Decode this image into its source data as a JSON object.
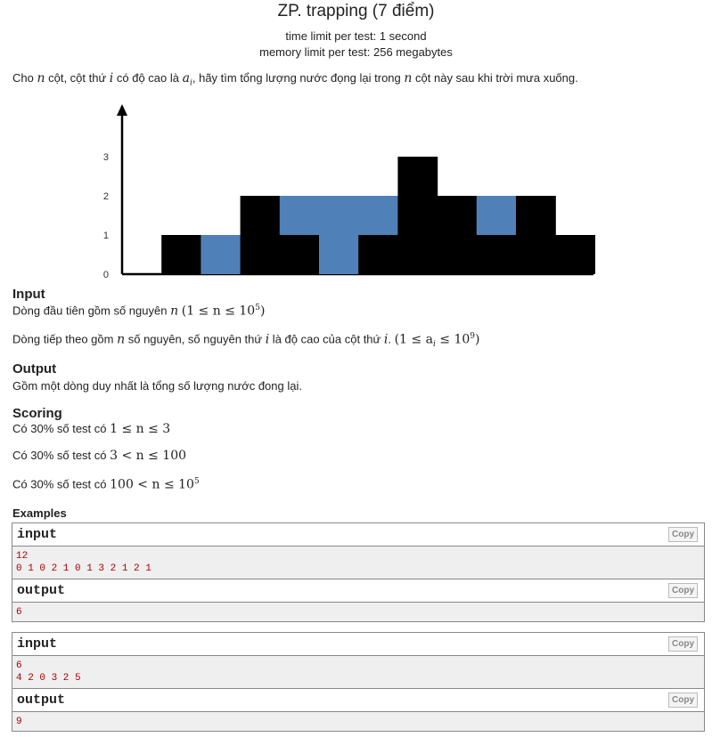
{
  "problem": {
    "title": "ZP. trapping (7 điểm)",
    "time_limit": "time limit per test: 1 second",
    "memory_limit": "memory limit per test: 256 megabytes"
  },
  "statement": {
    "p1_a": "Cho ",
    "p1_n": "n",
    "p1_b": " cột, cột thứ ",
    "p1_i": "i",
    "p1_c": " có độ cao là ",
    "p1_ai": "a",
    "p1_ai_sub": "i",
    "p1_d": ", hãy tìm tổng lượng nước đọng lại trong ",
    "p1_n2": "n",
    "p1_e": " cột này sau khi trời mưa xuống."
  },
  "figure": {
    "heights": [
      0,
      1,
      0,
      2,
      1,
      0,
      1,
      3,
      2,
      1,
      2,
      1
    ],
    "water": [
      0,
      0,
      1,
      0,
      1,
      2,
      1,
      0,
      0,
      1,
      0,
      0
    ],
    "y_ticks": [
      "0",
      "1",
      "2",
      "3"
    ],
    "bar_color": "#000000",
    "water_color": "#5080b8"
  },
  "input_section": {
    "heading": "Input",
    "line1_text": "Dòng đầu tiên gồm số nguyên ",
    "line1_math": "n",
    "line1_cond": "(1 ≤ n ≤ 10",
    "line1_exp": "5",
    "line1_close": ")",
    "line2_a": "Dòng tiếp theo gồm ",
    "line2_n": "n",
    "line2_b": " số nguyên, số nguyên thứ ",
    "line2_i": "i",
    "line2_c": " là độ cao của cột thứ ",
    "line2_i2": "i",
    "line2_d": ". ",
    "line2_cond": "(1 ≤ a",
    "line2_sub": "i",
    "line2_cond2": " ≤ 10",
    "line2_exp": "9",
    "line2_close": ")"
  },
  "output_section": {
    "heading": "Output",
    "text": "Gồm một dòng duy nhất là tổng số lượng nước đong lại."
  },
  "scoring": {
    "heading": "Scoring",
    "items": [
      {
        "text": "Có 30% số test có ",
        "math": "1 ≤ n ≤ 3",
        "exp": ""
      },
      {
        "text": "Có 30% số test có ",
        "math": "3 < n ≤ 100",
        "exp": ""
      },
      {
        "text": "Có 30% số test có ",
        "math": "100 < n ≤ 10",
        "exp": "5"
      }
    ]
  },
  "examples": {
    "heading": "Examples",
    "copy_label": "Copy",
    "tests": [
      {
        "input_label": "input",
        "input_lines": [
          "12",
          "0 1 0 2 1 0 1 3 2 1 2 1"
        ],
        "output_label": "output",
        "output_lines": [
          "6"
        ]
      },
      {
        "input_label": "input",
        "input_lines": [
          "6",
          "4 2 0 3 2 5"
        ],
        "output_label": "output",
        "output_lines": [
          "9"
        ]
      }
    ]
  }
}
